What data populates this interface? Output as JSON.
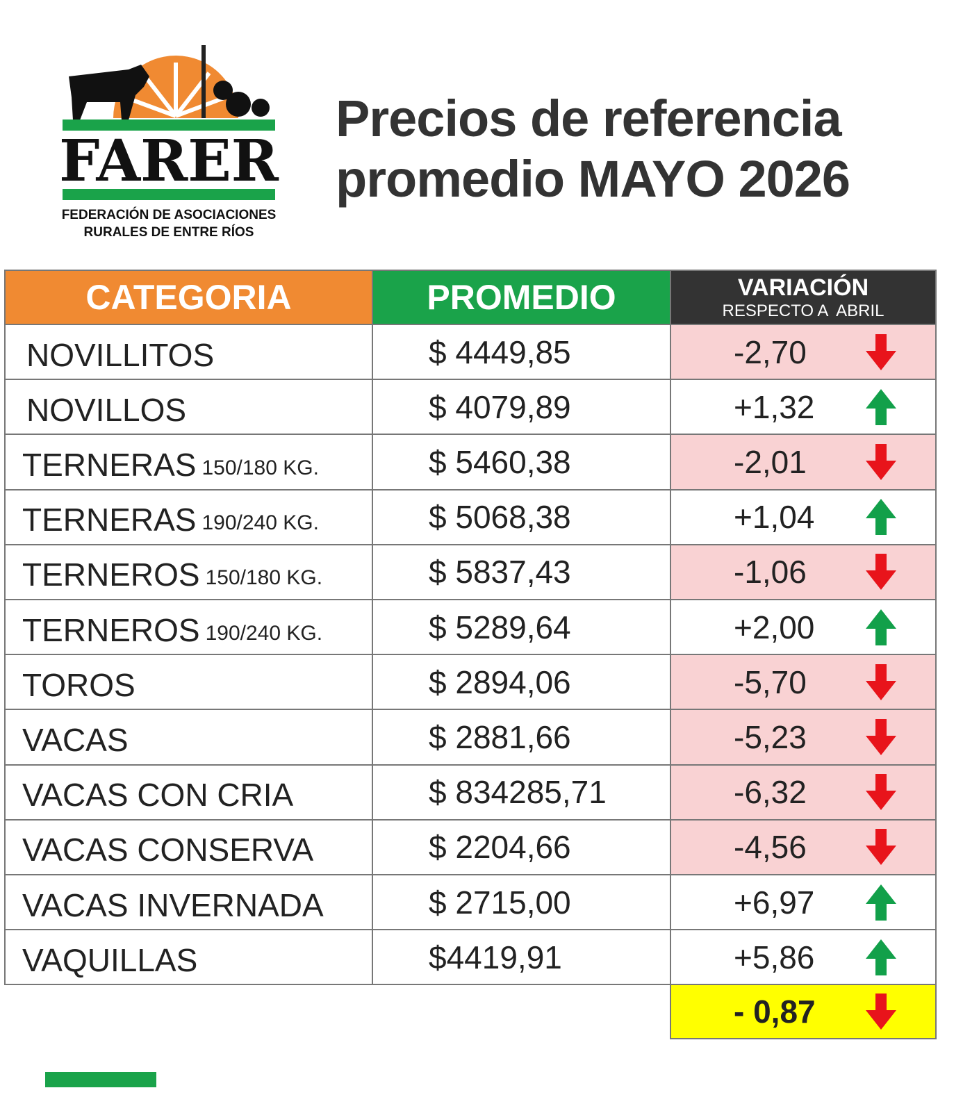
{
  "logo": {
    "name": "FARER",
    "subtitle": [
      "FEDERACIÓN DE ASOCIACIONES",
      "RURALES DE ENTRE RÍOS"
    ]
  },
  "header": {
    "title": [
      "Precios de referencia",
      "promedio MAYO 2026"
    ]
  },
  "table": {
    "columns": {
      "category": "CATEGORIA",
      "average": "PROMEDIO",
      "variation": "VARIACIÓN",
      "variation_note": "RESPECTO A  ABRIL"
    },
    "rows": [
      {
        "name": "NOVILLITOS",
        "average": "$ 4449,85",
        "variation": "-2,70",
        "trend": "down"
      },
      {
        "name": "NOVILLOS",
        "average": "$ 4079,89",
        "variation": "+1,32",
        "trend": "up"
      },
      {
        "name": "TERNERAS",
        "detail": "150/180 KG.",
        "average": "$ 5460,38",
        "variation": "-2,01",
        "trend": "down"
      },
      {
        "name": "TERNERAS",
        "detail": "190/240 KG.",
        "average": "$ 5068,38",
        "variation": "+1,04",
        "trend": "up"
      },
      {
        "name": "TERNEROS",
        "detail": "150/180 KG.",
        "average": "$ 5837,43",
        "variation": "-1,06",
        "trend": "down"
      },
      {
        "name": "TERNEROS",
        "detail": "190/240 KG.",
        "average": "$ 5289,64",
        "variation": "+2,00",
        "trend": "up"
      },
      {
        "name": "TOROS",
        "average": "$ 2894,06",
        "variation": "-5,70",
        "trend": "down"
      },
      {
        "name": "VACAS",
        "average": "$ 2881,66",
        "variation": "-5,23",
        "trend": "down"
      },
      {
        "name": "VACAS CON CRIA",
        "average": "$ 834285,71",
        "variation": "-6,32",
        "trend": "down"
      },
      {
        "name": "VACAS CONSERVA",
        "average": "$ 2204,66",
        "variation": "-4,56",
        "trend": "down"
      },
      {
        "name": "VACAS INVERNADA",
        "average": "$ 2715,00",
        "variation": "+6,97",
        "trend": "up"
      },
      {
        "name": "VAQUILLAS",
        "average": "$4419,91",
        "variation": "+5,86",
        "trend": "up"
      }
    ],
    "total": {
      "variation": "- 0,87",
      "trend": "down"
    }
  }
}
